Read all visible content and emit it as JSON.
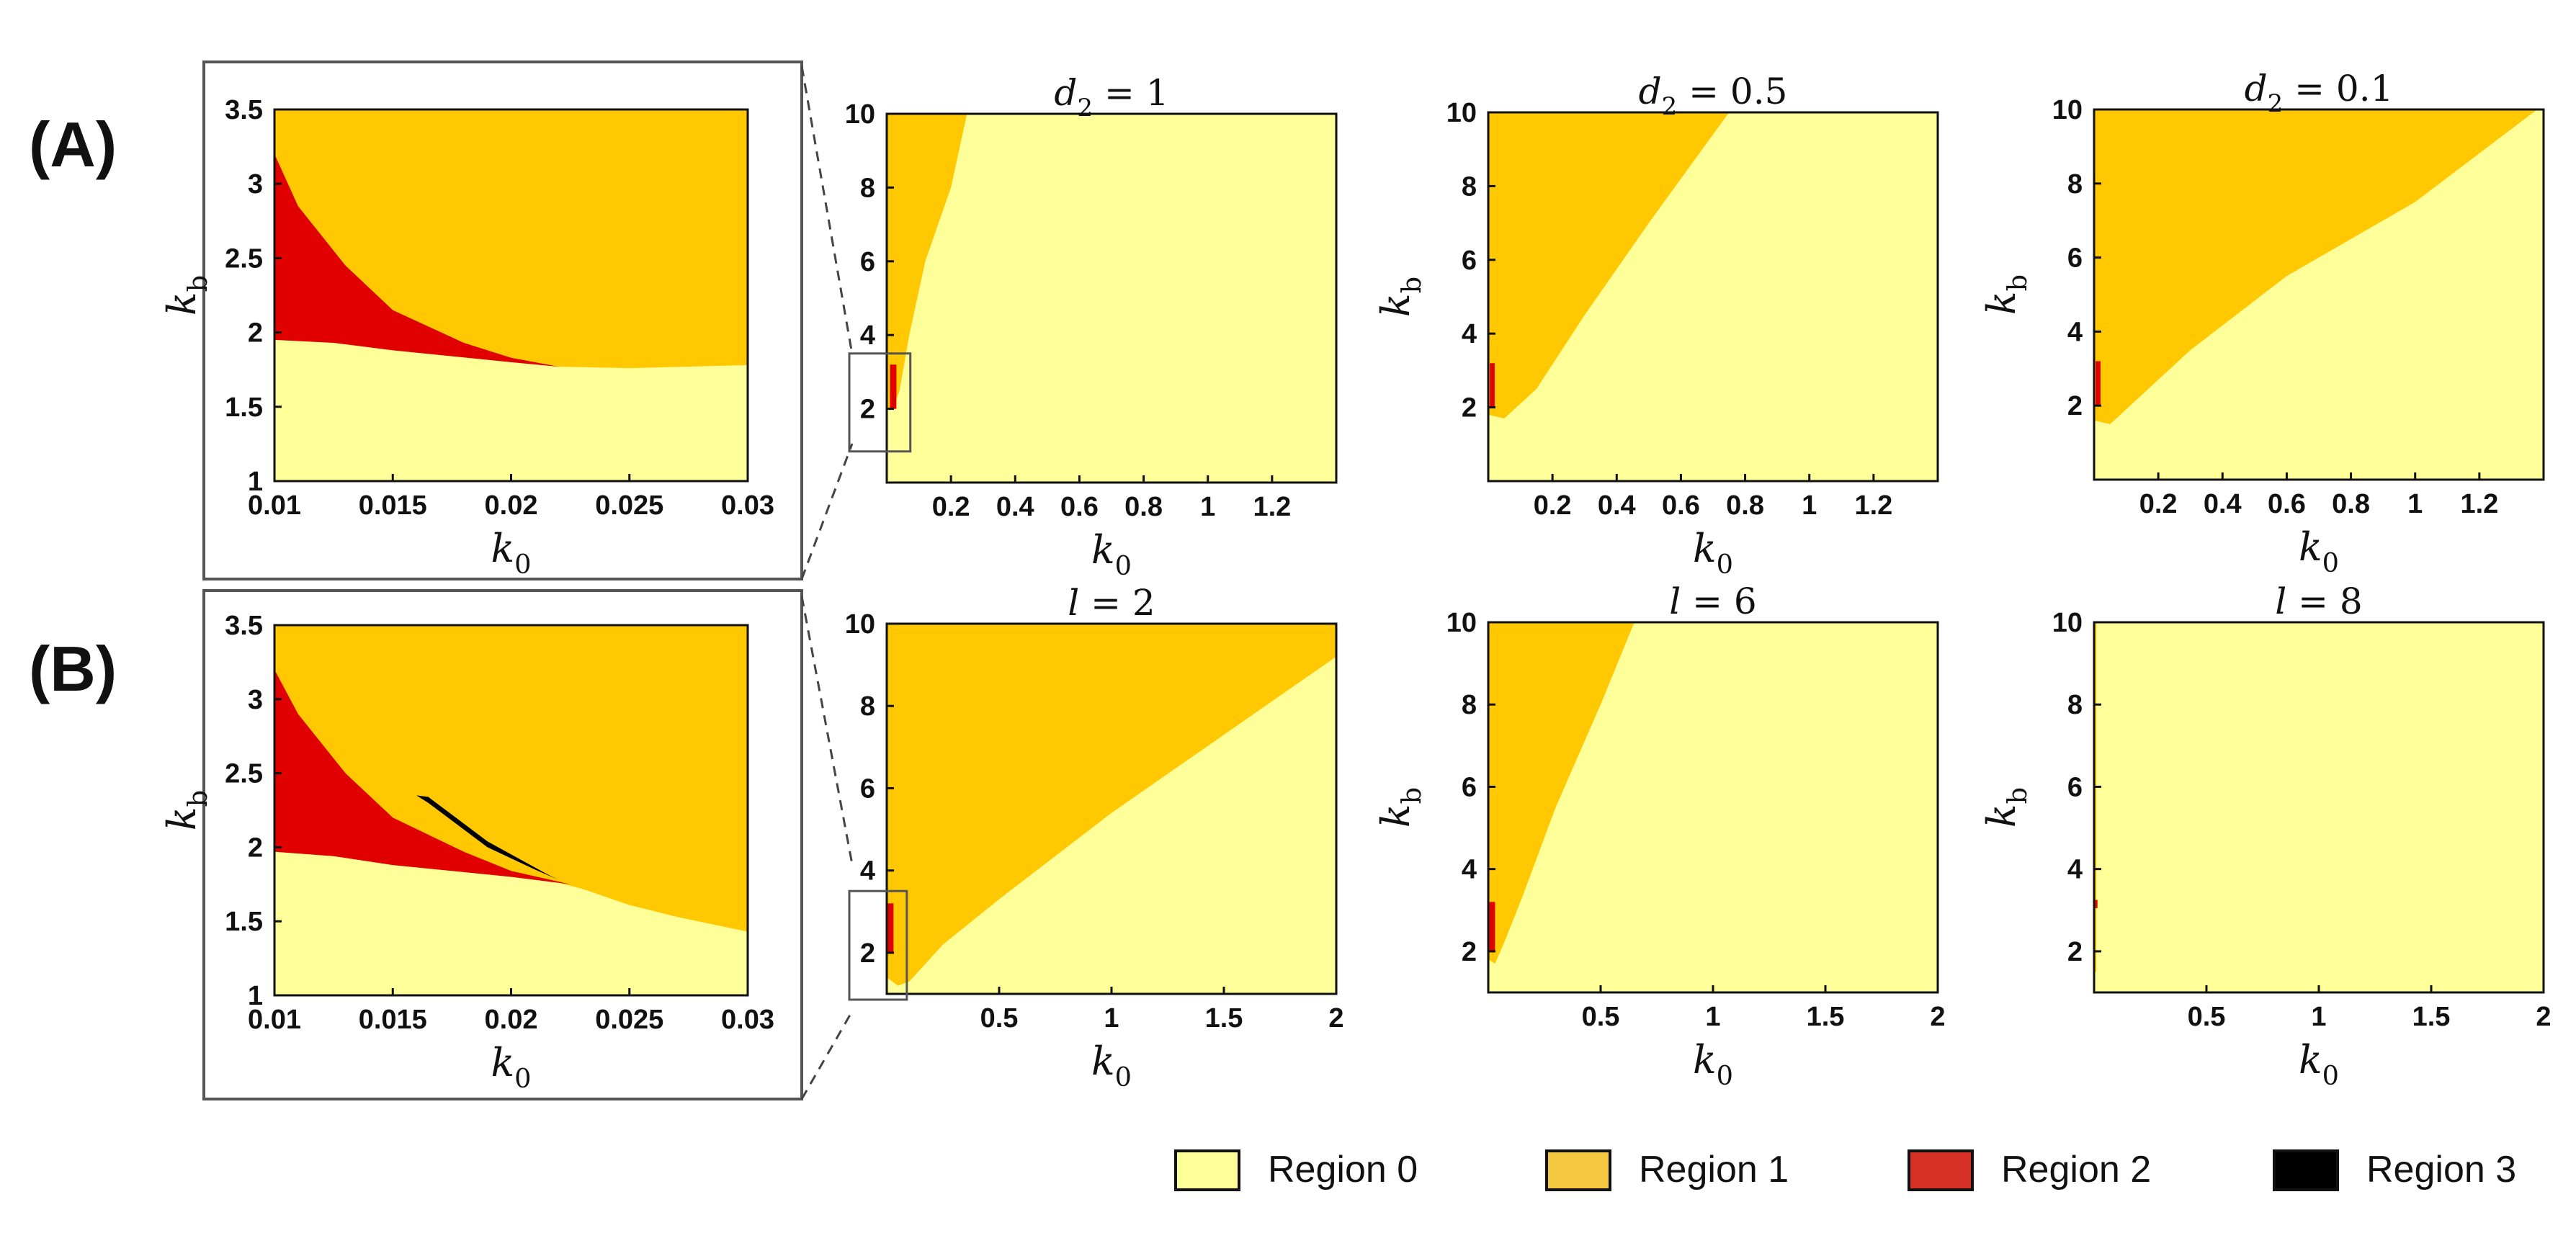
{
  "row_labels": [
    "(A)",
    "(B)"
  ],
  "colors": {
    "region0": "#FFFF99",
    "region1": "#FFC800",
    "region2": "#E00000",
    "region3": "#000000"
  },
  "legend": [
    {
      "label": "Region 0",
      "color": "#FFFF99"
    },
    {
      "label": "Region 1",
      "color": "#F5C842"
    },
    {
      "label": "Region 2",
      "color": "#D73027"
    },
    {
      "label": "Region 3",
      "color": "#000000"
    }
  ],
  "chart_data": [
    {
      "id": "A-inset",
      "type": "heatmap",
      "row": "A",
      "title": "",
      "xlabel": "k_0",
      "ylabel": "k_b",
      "xlim": [
        0.01,
        0.03
      ],
      "ylim": [
        1,
        3.5
      ],
      "xticks": [
        0.01,
        0.015,
        0.02,
        0.025,
        0.03
      ],
      "xtick_labels": [
        "0.01",
        "0.015",
        "0.02",
        "0.025",
        "0.03"
      ],
      "yticks": [
        1,
        1.5,
        2,
        2.5,
        3,
        3.5
      ],
      "ytick_labels": [
        "1",
        "1.5",
        "2",
        "2.5",
        "3",
        "3.5"
      ],
      "regions": [
        {
          "region": 0,
          "points": [
            [
              0.01,
              1
            ],
            [
              0.03,
              1
            ],
            [
              0.03,
              1.78
            ],
            [
              0.025,
              1.76
            ],
            [
              0.022,
              1.77
            ],
            [
              0.02,
              1.8
            ],
            [
              0.015,
              1.88
            ],
            [
              0.0125,
              1.93
            ],
            [
              0.01,
              1.95
            ]
          ]
        },
        {
          "region": 2,
          "points": [
            [
              0.01,
              1.95
            ],
            [
              0.0125,
              1.93
            ],
            [
              0.015,
              1.88
            ],
            [
              0.02,
              1.8
            ],
            [
              0.022,
              1.77
            ],
            [
              0.02,
              1.83
            ],
            [
              0.018,
              1.93
            ],
            [
              0.015,
              2.15
            ],
            [
              0.013,
              2.45
            ],
            [
              0.011,
              2.85
            ],
            [
              0.01,
              3.2
            ]
          ]
        }
      ]
    },
    {
      "id": "A1",
      "type": "heatmap",
      "row": "A",
      "title": "d_2 = 1",
      "xlabel": "k_0",
      "ylabel": "",
      "xlim": [
        0,
        1.4
      ],
      "ylim": [
        0,
        10
      ],
      "xticks": [
        0.2,
        0.4,
        0.6,
        0.8,
        1,
        1.2
      ],
      "xtick_labels": [
        "0.2",
        "0.4",
        "0.6",
        "0.8",
        "1",
        "1.2"
      ],
      "yticks": [
        2,
        4,
        6,
        8,
        10
      ],
      "ytick_labels": [
        "2",
        "4",
        "6",
        "8",
        "10"
      ],
      "regions": [
        {
          "region": 1,
          "points": [
            [
              0,
              10
            ],
            [
              0.25,
              10
            ],
            [
              0.2,
              8
            ],
            [
              0.12,
              6
            ],
            [
              0.07,
              4
            ],
            [
              0.04,
              2.5
            ],
            [
              0.02,
              2
            ],
            [
              0,
              2
            ]
          ]
        },
        {
          "region": 2,
          "points": [
            [
              0.01,
              2
            ],
            [
              0.03,
              2
            ],
            [
              0.03,
              3.2
            ],
            [
              0.01,
              3.2
            ]
          ]
        }
      ],
      "zoom_box": {
        "x": [
          0,
          0.06
        ],
        "y": [
          1,
          3.5
        ]
      }
    },
    {
      "id": "A2",
      "type": "heatmap",
      "row": "A",
      "title": "d_2 = 0.5",
      "xlabel": "k_0",
      "ylabel": "k_b",
      "xlim": [
        0,
        1.4
      ],
      "ylim": [
        0,
        10
      ],
      "xticks": [
        0.2,
        0.4,
        0.6,
        0.8,
        1,
        1.2
      ],
      "xtick_labels": [
        "0.2",
        "0.4",
        "0.6",
        "0.8",
        "1",
        "1.2"
      ],
      "yticks": [
        2,
        4,
        6,
        8,
        10
      ],
      "ytick_labels": [
        "2",
        "4",
        "6",
        "8",
        "10"
      ],
      "regions": [
        {
          "region": 1,
          "points": [
            [
              0,
              10
            ],
            [
              0.75,
              10
            ],
            [
              0.5,
              7
            ],
            [
              0.3,
              4.5
            ],
            [
              0.15,
              2.5
            ],
            [
              0.05,
              1.7
            ],
            [
              0,
              1.8
            ]
          ]
        },
        {
          "region": 2,
          "points": [
            [
              0.005,
              2
            ],
            [
              0.02,
              2
            ],
            [
              0.02,
              3.2
            ],
            [
              0.005,
              3.2
            ]
          ]
        }
      ]
    },
    {
      "id": "A3",
      "type": "heatmap",
      "row": "A",
      "title": "d_2 = 0.1",
      "xlabel": "k_0",
      "ylabel": "k_b",
      "xlim": [
        0,
        1.4
      ],
      "ylim": [
        0,
        10
      ],
      "xticks": [
        0.2,
        0.4,
        0.6,
        0.8,
        1,
        1.2
      ],
      "xtick_labels": [
        "0.2",
        "0.4",
        "0.6",
        "0.8",
        "1",
        "1.2"
      ],
      "yticks": [
        2,
        4,
        6,
        8,
        10
      ],
      "ytick_labels": [
        "2",
        "4",
        "6",
        "8",
        "10"
      ],
      "regions": [
        {
          "region": 1,
          "points": [
            [
              0,
              10
            ],
            [
              1.38,
              10
            ],
            [
              1.0,
              7.5
            ],
            [
              0.6,
              5.5
            ],
            [
              0.3,
              3.5
            ],
            [
              0.15,
              2.3
            ],
            [
              0.05,
              1.5
            ],
            [
              0,
              1.6
            ]
          ]
        },
        {
          "region": 2,
          "points": [
            [
              0.005,
              2
            ],
            [
              0.02,
              2
            ],
            [
              0.02,
              3.2
            ],
            [
              0.005,
              3.2
            ]
          ]
        }
      ]
    },
    {
      "id": "B-inset",
      "type": "heatmap",
      "row": "B",
      "title": "",
      "xlabel": "k_0",
      "ylabel": "k_b",
      "xlim": [
        0.01,
        0.03
      ],
      "ylim": [
        1,
        3.5
      ],
      "xticks": [
        0.01,
        0.015,
        0.02,
        0.025,
        0.03
      ],
      "xtick_labels": [
        "0.01",
        "0.015",
        "0.02",
        "0.025",
        "0.03"
      ],
      "yticks": [
        1,
        1.5,
        2,
        2.5,
        3,
        3.5
      ],
      "ytick_labels": [
        "1",
        "1.5",
        "2",
        "2.5",
        "3",
        "3.5"
      ],
      "regions": [
        {
          "region": 0,
          "points": [
            [
              0.01,
              1
            ],
            [
              0.03,
              1
            ],
            [
              0.03,
              1.43
            ],
            [
              0.027,
              1.53
            ],
            [
              0.025,
              1.61
            ],
            [
              0.023,
              1.72
            ],
            [
              0.022,
              1.76
            ],
            [
              0.02,
              1.8
            ],
            [
              0.015,
              1.88
            ],
            [
              0.0125,
              1.94
            ],
            [
              0.01,
              1.97
            ]
          ]
        },
        {
          "region": 2,
          "points": [
            [
              0.01,
              1.97
            ],
            [
              0.0125,
              1.94
            ],
            [
              0.015,
              1.88
            ],
            [
              0.02,
              1.8
            ],
            [
              0.0225,
              1.75
            ],
            [
              0.02,
              1.84
            ],
            [
              0.018,
              1.97
            ],
            [
              0.015,
              2.2
            ],
            [
              0.013,
              2.5
            ],
            [
              0.011,
              2.9
            ],
            [
              0.01,
              3.2
            ]
          ]
        },
        {
          "region": 3,
          "points": [
            [
              0.016,
              2.35
            ],
            [
              0.0165,
              2.3
            ],
            [
              0.019,
              2.0
            ],
            [
              0.021,
              1.85
            ],
            [
              0.022,
              1.78
            ],
            [
              0.0215,
              1.82
            ],
            [
              0.019,
              2.04
            ],
            [
              0.0165,
              2.34
            ]
          ]
        }
      ]
    },
    {
      "id": "B1",
      "type": "heatmap",
      "row": "B",
      "title": "l = 2",
      "xlabel": "k_0",
      "ylabel": "",
      "xlim": [
        0,
        2
      ],
      "ylim": [
        1,
        10
      ],
      "xticks": [
        0.5,
        1,
        1.5,
        2
      ],
      "xtick_labels": [
        "0.5",
        "1",
        "1.5",
        "2"
      ],
      "yticks": [
        2,
        4,
        6,
        8,
        10
      ],
      "ytick_labels": [
        "2",
        "4",
        "6",
        "8",
        "10"
      ],
      "regions": [
        {
          "region": 1,
          "points": [
            [
              0,
              10
            ],
            [
              2,
              10
            ],
            [
              2,
              9.2
            ],
            [
              1.5,
              7.3
            ],
            [
              1.0,
              5.4
            ],
            [
              0.5,
              3.3
            ],
            [
              0.25,
              2.2
            ],
            [
              0.1,
              1.3
            ],
            [
              0.05,
              1.2
            ],
            [
              0,
              1.4
            ]
          ]
        },
        {
          "region": 2,
          "points": [
            [
              0.005,
              2
            ],
            [
              0.03,
              2
            ],
            [
              0.03,
              3.2
            ],
            [
              0.005,
              3.2
            ]
          ]
        }
      ],
      "zoom_box": {
        "x": [
          0,
          0.07
        ],
        "y": [
          1,
          3.5
        ]
      }
    },
    {
      "id": "B2",
      "type": "heatmap",
      "row": "B",
      "title": "l = 6",
      "xlabel": "k_0",
      "ylabel": "k_b",
      "xlim": [
        0,
        2
      ],
      "ylim": [
        1,
        10
      ],
      "xticks": [
        0.5,
        1,
        1.5,
        2
      ],
      "xtick_labels": [
        "0.5",
        "1",
        "1.5",
        "2"
      ],
      "yticks": [
        2,
        4,
        6,
        8,
        10
      ],
      "ytick_labels": [
        "2",
        "4",
        "6",
        "8",
        "10"
      ],
      "regions": [
        {
          "region": 1,
          "points": [
            [
              0,
              10
            ],
            [
              0.65,
              10
            ],
            [
              0.5,
              8
            ],
            [
              0.3,
              5.5
            ],
            [
              0.15,
              3.3
            ],
            [
              0.07,
              2.2
            ],
            [
              0.03,
              1.7
            ],
            [
              0,
              1.8
            ]
          ]
        },
        {
          "region": 2,
          "points": [
            [
              0.005,
              2
            ],
            [
              0.03,
              2
            ],
            [
              0.03,
              3.2
            ],
            [
              0.005,
              3.2
            ]
          ]
        }
      ]
    },
    {
      "id": "B3",
      "type": "heatmap",
      "row": "B",
      "title": "l = 8",
      "xlabel": "k_0",
      "ylabel": "k_b",
      "xlim": [
        0,
        2
      ],
      "ylim": [
        1,
        10
      ],
      "xticks": [
        0.5,
        1,
        1.5,
        2
      ],
      "xtick_labels": [
        "0.5",
        "1",
        "1.5",
        "2"
      ],
      "yticks": [
        2,
        4,
        6,
        8,
        10
      ],
      "ytick_labels": [
        "2",
        "4",
        "6",
        "8",
        "10"
      ],
      "regions": [
        {
          "region": 1,
          "points": [
            [
              0,
              10
            ],
            [
              0.01,
              10
            ],
            [
              0.01,
              1.5
            ],
            [
              0,
              1.5
            ]
          ]
        },
        {
          "region": 2,
          "points": [
            [
              0.005,
              3.05
            ],
            [
              0.015,
              3.05
            ],
            [
              0.015,
              3.25
            ],
            [
              0.005,
              3.25
            ]
          ]
        }
      ]
    }
  ]
}
